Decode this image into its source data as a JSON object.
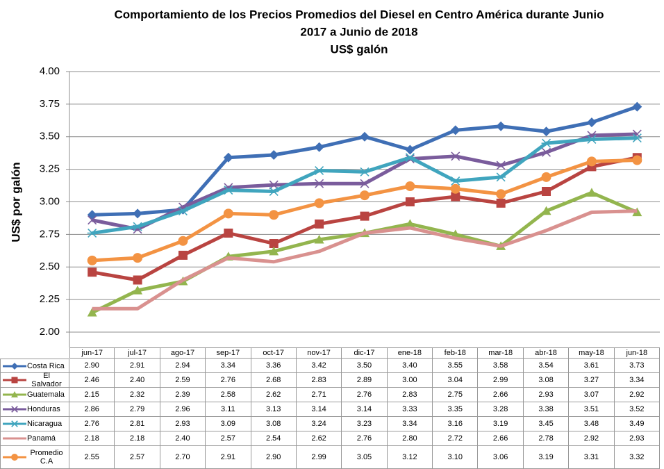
{
  "chart_data": {
    "type": "line",
    "title": [
      "Comportamiento de los Precios Promedios del Diesel en Centro América durante Junio",
      "2017 a Junio de 2018",
      "US$ galón"
    ],
    "y_label": "US$ por galón",
    "categories": [
      "jun-17",
      "jul-17",
      "ago-17",
      "sep-17",
      "oct-17",
      "nov-17",
      "dic-17",
      "ene-18",
      "feb-18",
      "mar-18",
      "abr-18",
      "may-18",
      "jun-18"
    ],
    "ylim": [
      2,
      4
    ],
    "yticks": [
      {
        "value": 2,
        "label": "2.00"
      },
      {
        "value": 2.25,
        "label": "2.25"
      },
      {
        "value": 2.5,
        "label": "2.50"
      },
      {
        "value": 2.75,
        "label": "2.75"
      },
      {
        "value": 3,
        "label": "3.00"
      },
      {
        "value": 3.25,
        "label": "3.25"
      },
      {
        "value": 3.5,
        "label": "3.50"
      },
      {
        "value": 3.75,
        "label": "3.75"
      },
      {
        "value": 4,
        "label": "4.00"
      }
    ],
    "grid": true,
    "series": [
      {
        "name": "Costa Rica",
        "color": "#3f6fb5",
        "marker": "diamond",
        "values": [
          2.9,
          2.91,
          2.94,
          3.34,
          3.36,
          3.42,
          3.5,
          3.4,
          3.55,
          3.58,
          3.54,
          3.61,
          3.73
        ],
        "value_labels": [
          "2.90",
          "2.91",
          "2.94",
          "3.34",
          "3.36",
          "3.42",
          "3.50",
          "3.40",
          "3.55",
          "3.58",
          "3.54",
          "3.61",
          "3.73"
        ]
      },
      {
        "name": "El Salvador",
        "color": "#b94441",
        "marker": "square",
        "values": [
          2.46,
          2.4,
          2.59,
          2.76,
          2.68,
          2.83,
          2.89,
          3.0,
          3.04,
          2.99,
          3.08,
          3.27,
          3.34
        ],
        "value_labels": [
          "2.46",
          "2.40",
          "2.59",
          "2.76",
          "2.68",
          "2.83",
          "2.89",
          "3.00",
          "3.04",
          "2.99",
          "3.08",
          "3.27",
          "3.34"
        ]
      },
      {
        "name": "Guatemala",
        "color": "#93b54e",
        "marker": "triangle",
        "values": [
          2.15,
          2.32,
          2.39,
          2.58,
          2.62,
          2.71,
          2.76,
          2.83,
          2.75,
          2.66,
          2.93,
          3.07,
          2.92
        ],
        "value_labels": [
          "2.15",
          "2.32",
          "2.39",
          "2.58",
          "2.62",
          "2.71",
          "2.76",
          "2.83",
          "2.75",
          "2.66",
          "2.93",
          "3.07",
          "2.92"
        ]
      },
      {
        "name": "Honduras",
        "color": "#7a5c9c",
        "marker": "x",
        "values": [
          2.86,
          2.79,
          2.96,
          3.11,
          3.13,
          3.14,
          3.14,
          3.33,
          3.35,
          3.28,
          3.38,
          3.51,
          3.52
        ],
        "value_labels": [
          "2.86",
          "2.79",
          "2.96",
          "3.11",
          "3.13",
          "3.14",
          "3.14",
          "3.33",
          "3.35",
          "3.28",
          "3.38",
          "3.51",
          "3.52"
        ]
      },
      {
        "name": "Nicaragua",
        "color": "#40a5be",
        "marker": "asterisk",
        "values": [
          2.76,
          2.81,
          2.93,
          3.09,
          3.08,
          3.24,
          3.23,
          3.34,
          3.16,
          3.19,
          3.45,
          3.48,
          3.49
        ],
        "value_labels": [
          "2.76",
          "2.81",
          "2.93",
          "3.09",
          "3.08",
          "3.24",
          "3.23",
          "3.34",
          "3.16",
          "3.19",
          "3.45",
          "3.48",
          "3.49"
        ]
      },
      {
        "name": "Panamá",
        "color": "#d9918f",
        "marker": "none",
        "values": [
          2.18,
          2.18,
          2.4,
          2.57,
          2.54,
          2.62,
          2.76,
          2.8,
          2.72,
          2.66,
          2.78,
          2.92,
          2.93
        ],
        "value_labels": [
          "2.18",
          "2.18",
          "2.40",
          "2.57",
          "2.54",
          "2.62",
          "2.76",
          "2.80",
          "2.72",
          "2.66",
          "2.78",
          "2.92",
          "2.93"
        ]
      },
      {
        "name": "Promedio C.A",
        "color": "#f39343",
        "marker": "circle",
        "values": [
          2.55,
          2.57,
          2.7,
          2.91,
          2.9,
          2.99,
          3.05,
          3.12,
          3.1,
          3.06,
          3.19,
          3.31,
          3.32
        ],
        "value_labels": [
          "2.55",
          "2.57",
          "2.70",
          "2.91",
          "2.90",
          "2.99",
          "3.05",
          "3.12",
          "3.10",
          "3.06",
          "3.19",
          "3.31",
          "3.32"
        ]
      }
    ]
  }
}
